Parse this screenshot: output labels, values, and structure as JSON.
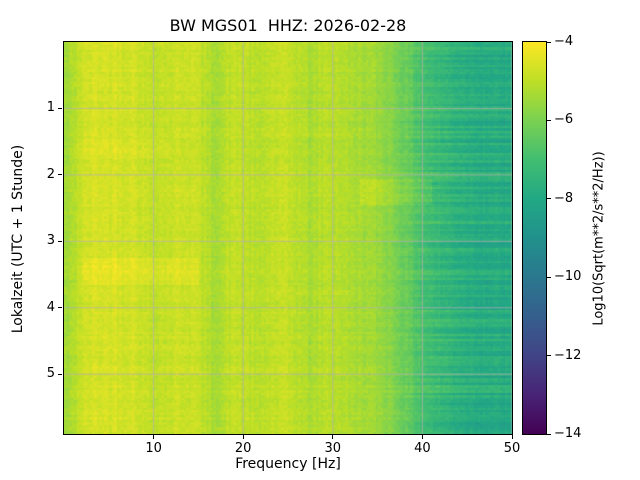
{
  "figure": {
    "title": "BW MGS01  HHZ: 2026-02-28",
    "background": "#ffffff"
  },
  "axes": {
    "xlabel": "Frequency [Hz]",
    "ylabel": "Lokalzeit (UTC + 1 Stunde)",
    "x_ticks": [
      {
        "value": 10,
        "label": "10"
      },
      {
        "value": 20,
        "label": "20"
      },
      {
        "value": 30,
        "label": "30"
      },
      {
        "value": 40,
        "label": "40"
      },
      {
        "value": 50,
        "label": "50"
      }
    ],
    "y_ticks": [
      {
        "value": 1,
        "label": "1"
      },
      {
        "value": 2,
        "label": "2"
      },
      {
        "value": 3,
        "label": "3"
      },
      {
        "value": 4,
        "label": "4"
      },
      {
        "value": 5,
        "label": "5"
      }
    ],
    "x_range": [
      0,
      50
    ],
    "y_range": [
      0,
      5.9
    ],
    "grid": true,
    "grid_color": "#b0b0b0"
  },
  "colorbar": {
    "label": "Log10(Sqrt(m**2/s**2/Hz))",
    "ticks": [
      {
        "value": -4,
        "label": "−4"
      },
      {
        "value": -6,
        "label": "−6"
      },
      {
        "value": -8,
        "label": "−8"
      },
      {
        "value": -10,
        "label": "−10"
      },
      {
        "value": -12,
        "label": "−12"
      },
      {
        "value": -14,
        "label": "−14"
      }
    ],
    "value_range": [
      -14,
      -4
    ],
    "colormap": "viridis",
    "colormap_stops": [
      "#440154",
      "#482475",
      "#414487",
      "#355f8d",
      "#2a788e",
      "#21918c",
      "#22a884",
      "#42be71",
      "#7ad151",
      "#bddf26",
      "#fde725"
    ]
  },
  "chart_data": {
    "type": "heatmap",
    "title": "BW MGS01  HHZ: 2026-02-28",
    "xlabel": "Frequency [Hz]",
    "ylabel": "Lokalzeit (UTC + 1 Stunde)",
    "x_range_hz": [
      0,
      50
    ],
    "y_range_hours": [
      0,
      5.9
    ],
    "value_label": "Log10(Sqrt(m**2/s**2/Hz))",
    "value_range": [
      -14,
      -4
    ],
    "colormap": "viridis",
    "legend_position": "colorbar-right",
    "grid": true,
    "freq_bins_hz": [
      0.5,
      1.5,
      2.5,
      3.5,
      4.5,
      5.5,
      6.5,
      7.5,
      8.5,
      9.5,
      10.5,
      11.5,
      12.5,
      13.5,
      14.5,
      15.5,
      16.5,
      17.5,
      18.5,
      19.5,
      20.5,
      21.5,
      22.5,
      23.5,
      24.5,
      25.5,
      26.5,
      27.5,
      28.5,
      29.5,
      30.5,
      31.5,
      32.5,
      33.5,
      34.5,
      35.5,
      36.5,
      37.5,
      38.5,
      39.5,
      40.5,
      41.5,
      42.5,
      43.5,
      44.5,
      45.5,
      46.5,
      47.5,
      48.5,
      49.5
    ],
    "mean_log10_by_freq": [
      -5.4,
      -4.9,
      -4.7,
      -4.6,
      -4.65,
      -4.6,
      -4.7,
      -4.6,
      -4.8,
      -4.9,
      -4.9,
      -4.85,
      -4.8,
      -4.75,
      -4.8,
      -5.0,
      -5.25,
      -5.2,
      -4.95,
      -4.9,
      -5.0,
      -5.15,
      -5.0,
      -4.9,
      -4.9,
      -4.95,
      -5.1,
      -5.3,
      -5.15,
      -5.0,
      -5.05,
      -5.2,
      -5.3,
      -5.35,
      -5.45,
      -5.6,
      -5.8,
      -6.1,
      -6.4,
      -6.7,
      -7.0,
      -7.2,
      -7.35,
      -7.5,
      -7.6,
      -7.7,
      -7.75,
      -7.8,
      -7.85,
      -7.9
    ],
    "bright_patches": [
      {
        "time_h": [
          3.25,
          3.65
        ],
        "freq_hz": [
          2,
          15
        ],
        "delta": 0.3
      },
      {
        "time_h": [
          2.05,
          2.45
        ],
        "freq_hz": [
          33,
          41
        ],
        "delta": 0.35
      },
      {
        "time_h": [
          1.45,
          1.75
        ],
        "freq_hz": [
          1,
          12
        ],
        "delta": 0.18
      }
    ],
    "noise": {
      "seed": 42,
      "row_amp": 0.1,
      "col_amp": 0.12,
      "cell_amp": 0.18,
      "streak_amp": 0.45,
      "streak_start_hz": 36
    }
  }
}
